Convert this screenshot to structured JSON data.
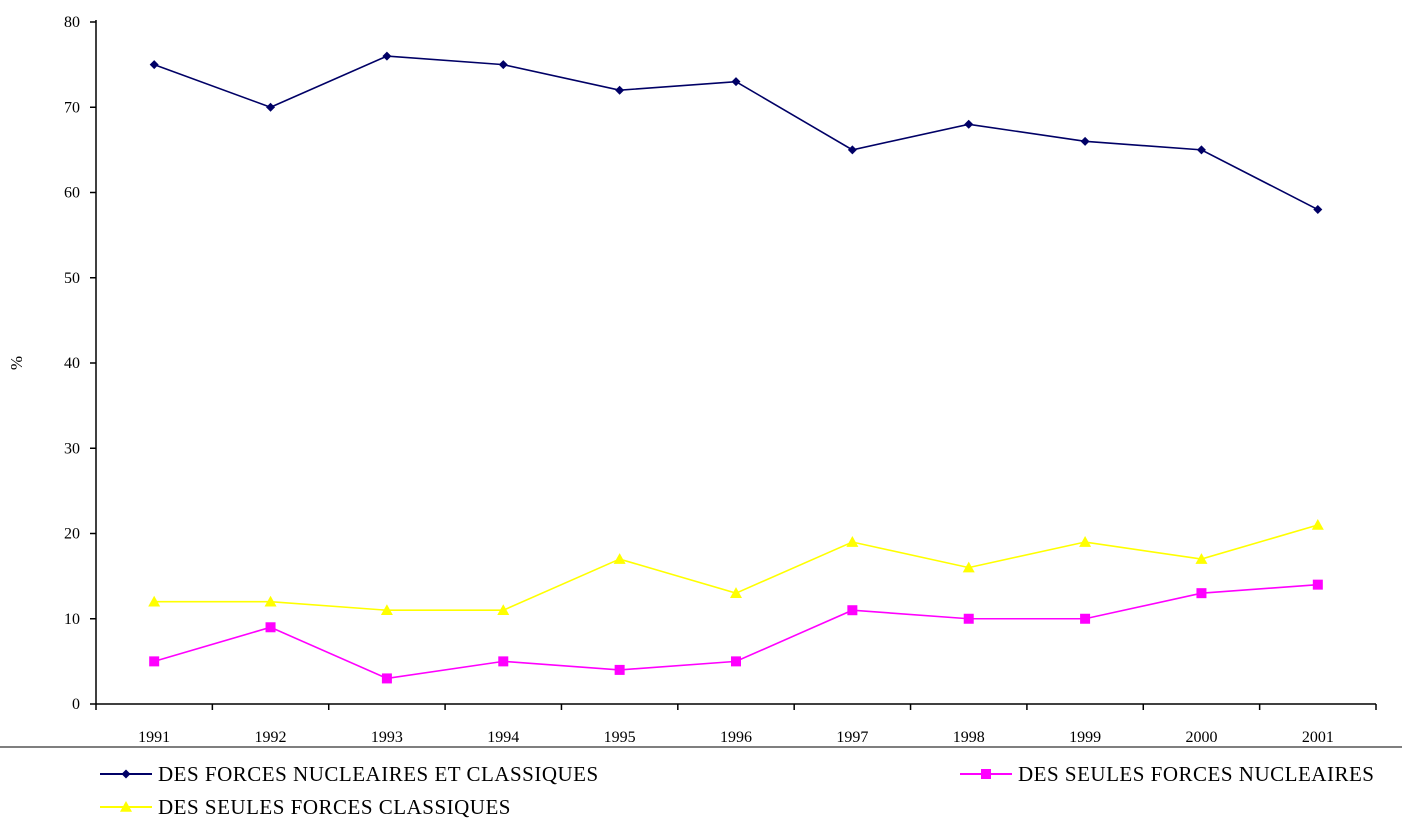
{
  "chart_data": {
    "type": "line",
    "title": "",
    "xlabel": "",
    "ylabel": "%",
    "ylim": [
      0,
      80
    ],
    "yticks": [
      0,
      10,
      20,
      30,
      40,
      50,
      60,
      70,
      80
    ],
    "categories": [
      "1991",
      "1992",
      "1993",
      "1994",
      "1995",
      "1996",
      "1997",
      "1998",
      "1999",
      "2000",
      "2001"
    ],
    "grid": false,
    "legend_position": "bottom",
    "series": [
      {
        "name": "DES FORCES NUCLEAIRES ET CLASSIQUES",
        "color": "#000066",
        "marker": "diamond",
        "values": [
          75,
          70,
          76,
          75,
          72,
          73,
          65,
          68,
          66,
          65,
          58
        ]
      },
      {
        "name": "DES SEULES FORCES NUCLEAIRES",
        "color": "#ff00ff",
        "marker": "square",
        "values": [
          5,
          9,
          3,
          5,
          4,
          5,
          11,
          10,
          10,
          13,
          14
        ]
      },
      {
        "name": "DES SEULES FORCES CLASSIQUES",
        "color": "#ffff00",
        "marker": "triangle",
        "values": [
          12,
          12,
          11,
          11,
          17,
          13,
          19,
          16,
          19,
          17,
          21
        ]
      }
    ]
  }
}
